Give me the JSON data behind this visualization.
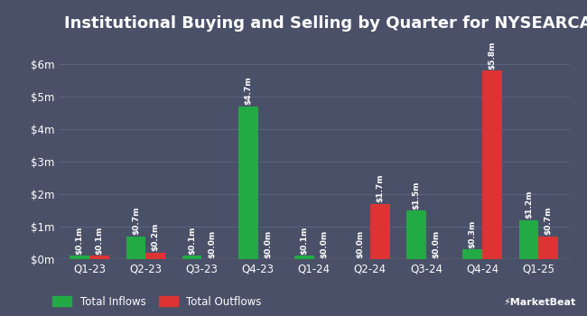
{
  "title": "Institutional Buying and Selling by Quarter for NYSEARCA:TTT",
  "quarters": [
    "Q1-23",
    "Q2-23",
    "Q3-23",
    "Q4-23",
    "Q1-24",
    "Q2-24",
    "Q3-24",
    "Q4-24",
    "Q1-25"
  ],
  "inflows": [
    0.1,
    0.7,
    0.1,
    4.7,
    0.1,
    0.0,
    1.5,
    0.3,
    1.2
  ],
  "outflows": [
    0.1,
    0.2,
    0.0,
    0.0,
    0.0,
    1.7,
    0.0,
    5.8,
    0.7
  ],
  "inflow_labels": [
    "$0.1m",
    "$0.7m",
    "$0.1m",
    "$4.7m",
    "$0.1m",
    "$0.0m",
    "$1.5m",
    "$0.3m",
    "$1.2m"
  ],
  "outflow_labels": [
    "$0.1m",
    "$0.2m",
    "$0.0m",
    "$0.0m",
    "$0.0m",
    "$1.7m",
    "$0.0m",
    "$5.8m",
    "$0.7m"
  ],
  "inflow_color": "#22aa44",
  "outflow_color": "#dd3333",
  "background_color": "#4a5068",
  "text_color": "#ffffff",
  "grid_color": "#5c6480",
  "ylim": [
    0,
    6.8
  ],
  "yticks": [
    0,
    1,
    2,
    3,
    4,
    5,
    6
  ],
  "ytick_labels": [
    "$0m",
    "$1m",
    "$2m",
    "$3m",
    "$4m",
    "$5m",
    "$6m"
  ],
  "legend_inflows": "Total Inflows",
  "legend_outflows": "Total Outflows",
  "bar_width": 0.35,
  "label_fontsize": 6.5,
  "title_fontsize": 13,
  "tick_fontsize": 8.5
}
